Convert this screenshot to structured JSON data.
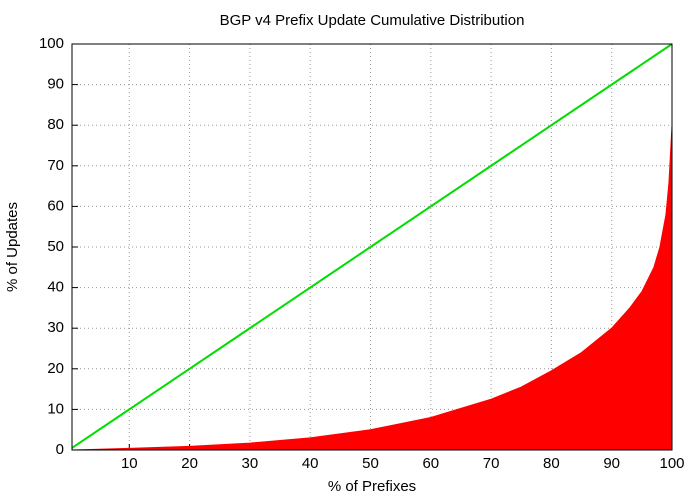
{
  "chart_data": {
    "type": "area",
    "title": "BGP v4 Prefix Update Cumulative Distribution",
    "x_label": "% of Prefixes",
    "y_label": "% of Updates",
    "xlim": [
      0.5,
      100
    ],
    "ylim": [
      0,
      100
    ],
    "xticks": [
      10,
      20,
      30,
      40,
      50,
      60,
      70,
      80,
      90,
      100
    ],
    "yticks": [
      0,
      10,
      20,
      30,
      40,
      50,
      60,
      70,
      80,
      90,
      100
    ],
    "grid": true,
    "series": [
      {
        "type": "area",
        "color": "#ff0000",
        "x": [
          0.5,
          5,
          10,
          20,
          30,
          40,
          50,
          60,
          70,
          75,
          80,
          85,
          90,
          93,
          95,
          97,
          98,
          99,
          99.5,
          100
        ],
        "values": [
          0,
          0.2,
          0.4,
          0.9,
          1.7,
          3,
          5,
          8,
          12.5,
          15.5,
          19.5,
          24,
          30,
          35,
          39,
          45,
          50,
          58,
          66,
          80
        ]
      },
      {
        "type": "line",
        "color": "#00dd00",
        "x": [
          0.5,
          100
        ],
        "values": [
          0.5,
          100
        ]
      }
    ]
  }
}
